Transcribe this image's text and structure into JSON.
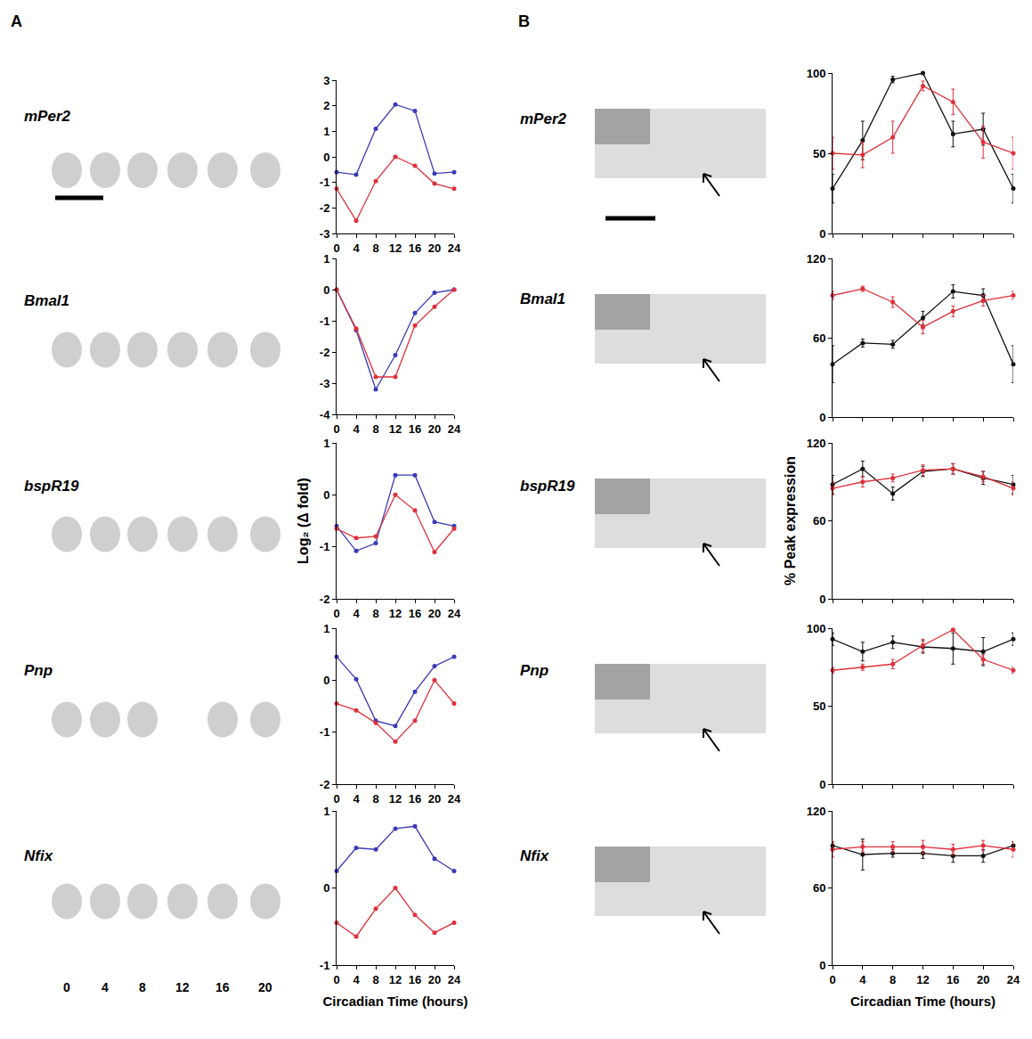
{
  "panels": [
    "A",
    "B"
  ],
  "strip_times": [
    0,
    4,
    8,
    12,
    16,
    20
  ],
  "chart_data": [
    {
      "type": "line",
      "title": "mPer2",
      "x": [
        0,
        4,
        8,
        12,
        16,
        20,
        24
      ],
      "xlim": [
        0,
        24
      ],
      "xticks": [
        0,
        4,
        8,
        12,
        16,
        20,
        24
      ],
      "ylim": [
        -3,
        3
      ],
      "yticks": [
        -3,
        -2,
        -1,
        0,
        1,
        2,
        3
      ],
      "grid": false,
      "marker": "circle",
      "series": [
        {
          "color": "#3a3ab8",
          "values": [
            -0.6,
            -0.7,
            1.1,
            2.05,
            1.8,
            -0.65,
            -0.6
          ]
        },
        {
          "color": "#e0303a",
          "values": [
            -1.25,
            -2.5,
            -0.95,
            0,
            -0.35,
            -1.05,
            -1.25
          ]
        }
      ]
    },
    {
      "type": "line",
      "title": "Bmal1",
      "x": [
        0,
        4,
        8,
        12,
        16,
        20,
        24
      ],
      "xlim": [
        0,
        24
      ],
      "xticks": [
        0,
        4,
        8,
        12,
        16,
        20,
        24
      ],
      "ylim": [
        -4,
        1
      ],
      "yticks": [
        -4,
        -3,
        -2,
        -1,
        0,
        1
      ],
      "grid": false,
      "marker": "circle",
      "series": [
        {
          "color": "#3a3ab8",
          "values": [
            0,
            -1.3,
            -3.2,
            -2.1,
            -0.75,
            -0.1,
            0
          ]
        },
        {
          "color": "#e0303a",
          "values": [
            0,
            -1.25,
            -2.8,
            -2.8,
            -1.15,
            -0.55,
            0
          ]
        }
      ]
    },
    {
      "type": "line",
      "title": "bspR19",
      "ylabel": "Log₂ (Δ fold)",
      "x": [
        0,
        4,
        8,
        12,
        16,
        20,
        24
      ],
      "xlim": [
        0,
        24
      ],
      "xticks": [
        0,
        4,
        8,
        12,
        16,
        20,
        24
      ],
      "ylim": [
        -2,
        1
      ],
      "yticks": [
        -2,
        -1,
        0,
        1
      ],
      "grid": false,
      "marker": "circle",
      "series": [
        {
          "color": "#3a3ab8",
          "values": [
            -0.6,
            -1.08,
            -0.93,
            0.38,
            0.38,
            -0.52,
            -0.6
          ]
        },
        {
          "color": "#e0303a",
          "values": [
            -0.65,
            -0.83,
            -0.8,
            0,
            -0.3,
            -1.1,
            -0.65
          ]
        }
      ]
    },
    {
      "type": "line",
      "title": "Pnp",
      "x": [
        0,
        4,
        8,
        12,
        16,
        20,
        24
      ],
      "xlim": [
        0,
        24
      ],
      "xticks": [
        0,
        4,
        8,
        12,
        16,
        20,
        24
      ],
      "ylim": [
        -2,
        1
      ],
      "yticks": [
        -2,
        -1,
        0,
        1
      ],
      "grid": false,
      "marker": "circle",
      "series": [
        {
          "color": "#3a3ab8",
          "values": [
            0.45,
            0.02,
            -0.78,
            -0.88,
            -0.22,
            0.27,
            0.45
          ]
        },
        {
          "color": "#e0303a",
          "values": [
            -0.45,
            -0.58,
            -0.82,
            -1.18,
            -0.78,
            0,
            -0.45
          ]
        }
      ]
    },
    {
      "type": "line",
      "title": "Nfix",
      "xlabel": "Circadian Time (hours)",
      "x": [
        0,
        4,
        8,
        12,
        16,
        20,
        24
      ],
      "xlim": [
        0,
        24
      ],
      "xticks": [
        0,
        4,
        8,
        12,
        16,
        20,
        24
      ],
      "ylim": [
        -1,
        1
      ],
      "yticks": [
        -1,
        0,
        1
      ],
      "grid": false,
      "marker": "circle",
      "series": [
        {
          "color": "#3a3ab8",
          "values": [
            0.22,
            0.52,
            0.5,
            0.77,
            0.8,
            0.38,
            0.22
          ]
        },
        {
          "color": "#e0303a",
          "values": [
            -0.45,
            -0.63,
            -0.27,
            0,
            -0.35,
            -0.58,
            -0.45
          ]
        }
      ]
    },
    {
      "type": "line",
      "title": "mPer2",
      "tick_labels": "y",
      "x": [
        0,
        4,
        8,
        12,
        16,
        20,
        24
      ],
      "xlim": [
        0,
        24
      ],
      "xticks": [
        0,
        4,
        8,
        12,
        16,
        20,
        24
      ],
      "ylim": [
        0,
        100
      ],
      "yticks": [
        0,
        50,
        100
      ],
      "grid": false,
      "marker": "circle",
      "series": [
        {
          "color": "#111111",
          "values": [
            28,
            58,
            96,
            100,
            62,
            65,
            28
          ],
          "errors": [
            9,
            12,
            2,
            0,
            8,
            10,
            9
          ]
        },
        {
          "color": "#e0303a",
          "values": [
            50,
            49,
            60,
            92,
            82,
            57,
            50
          ],
          "errors": [
            10,
            8,
            10,
            3,
            8,
            10,
            10
          ]
        }
      ]
    },
    {
      "type": "line",
      "title": "Bmal1",
      "tick_labels": "y",
      "x": [
        0,
        4,
        8,
        12,
        16,
        20,
        24
      ],
      "xlim": [
        0,
        24
      ],
      "xticks": [
        0,
        4,
        8,
        12,
        16,
        20,
        24
      ],
      "ylim": [
        0,
        120
      ],
      "yticks": [
        0,
        60,
        120
      ],
      "grid": false,
      "marker": "circle",
      "series": [
        {
          "color": "#111111",
          "values": [
            40,
            56,
            55,
            75,
            95,
            92,
            40
          ],
          "errors": [
            14,
            3,
            3,
            5,
            5,
            5,
            14
          ]
        },
        {
          "color": "#e0303a",
          "values": [
            92,
            97,
            87,
            68,
            80,
            88,
            92
          ],
          "errors": [
            3,
            2,
            4,
            5,
            4,
            4,
            3
          ]
        }
      ]
    },
    {
      "type": "line",
      "title": "bspR19",
      "ylabel": "% Peak expression",
      "tick_labels": "y",
      "x": [
        0,
        4,
        8,
        12,
        16,
        20,
        24
      ],
      "xlim": [
        0,
        24
      ],
      "xticks": [
        0,
        4,
        8,
        12,
        16,
        20,
        24
      ],
      "ylim": [
        0,
        120
      ],
      "yticks": [
        0,
        60,
        120
      ],
      "grid": false,
      "marker": "circle",
      "series": [
        {
          "color": "#111111",
          "values": [
            88,
            100,
            81,
            98,
            100,
            93,
            88
          ],
          "errors": [
            7,
            6,
            5,
            4,
            4,
            5,
            7
          ]
        },
        {
          "color": "#e0303a",
          "values": [
            85,
            90,
            93,
            99,
            100,
            94,
            85
          ],
          "errors": [
            5,
            4,
            3,
            4,
            4,
            4,
            5
          ]
        }
      ]
    },
    {
      "type": "line",
      "title": "Pnp",
      "tick_labels": "y",
      "x": [
        0,
        4,
        8,
        12,
        16,
        20,
        24
      ],
      "xlim": [
        0,
        24
      ],
      "xticks": [
        0,
        4,
        8,
        12,
        16,
        20,
        24
      ],
      "ylim": [
        0,
        100
      ],
      "yticks": [
        0,
        50,
        100
      ],
      "grid": false,
      "marker": "circle",
      "series": [
        {
          "color": "#111111",
          "values": [
            93,
            85,
            91,
            88,
            87,
            85,
            93
          ],
          "errors": [
            4,
            6,
            4,
            4,
            10,
            9,
            4
          ]
        },
        {
          "color": "#e0303a",
          "values": [
            73,
            75,
            77,
            89,
            99,
            80,
            73
          ],
          "errors": [
            2,
            2,
            3,
            4,
            1,
            3,
            2
          ]
        }
      ]
    },
    {
      "type": "line",
      "title": "Nfix",
      "xlabel": "Circadian Time (hours)",
      "x": [
        0,
        4,
        8,
        12,
        16,
        20,
        24
      ],
      "xlim": [
        0,
        24
      ],
      "xticks": [
        0,
        4,
        8,
        12,
        16,
        20,
        24
      ],
      "ylim": [
        0,
        120
      ],
      "yticks": [
        0,
        60,
        120
      ],
      "grid": false,
      "marker": "circle",
      "series": [
        {
          "color": "#111111",
          "values": [
            93,
            86,
            87,
            87,
            85,
            85,
            93
          ],
          "errors": [
            3,
            12,
            3,
            4,
            5,
            5,
            3
          ]
        },
        {
          "color": "#e0303a",
          "values": [
            90,
            92,
            92,
            92,
            90,
            93,
            90
          ],
          "errors": [
            6,
            4,
            4,
            5,
            4,
            4,
            6
          ]
        }
      ]
    }
  ]
}
